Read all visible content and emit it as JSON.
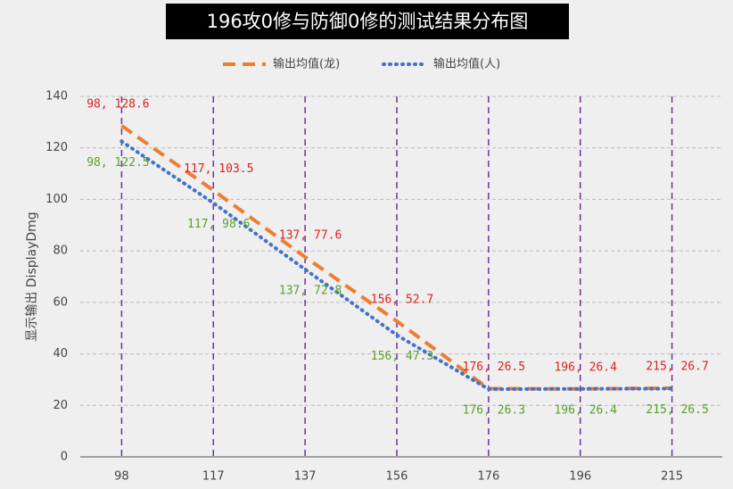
{
  "chart_data": {
    "type": "line",
    "title": "196攻0修与防御0修的测试结果分布图",
    "y_label": "显示输出 DisplayDmg",
    "categories": [
      "98",
      "117",
      "137",
      "156",
      "176",
      "196",
      "215"
    ],
    "series": [
      {
        "name": "输出均值(龙)",
        "color": "#ed7d31",
        "label_color": "#e02020",
        "style": "dashed",
        "values": [
          128.6,
          103.5,
          77.6,
          52.7,
          26.5,
          26.4,
          26.7
        ],
        "value_labels": [
          "98, 128.6",
          "117, 103.5",
          "137, 77.6",
          "156, 52.7",
          "176, 26.5",
          "196, 26.4",
          "215, 26.7"
        ]
      },
      {
        "name": "输出均值(人)",
        "color": "#4472c4",
        "label_color": "#5aa02c",
        "style": "dotted",
        "values": [
          122.5,
          98.6,
          72.8,
          47.3,
          26.3,
          26.4,
          26.5
        ],
        "value_labels": [
          "98, 122.5",
          "117, 98.6",
          "137, 72.8",
          "156, 47.3",
          "176, 26.3",
          "196, 26.4",
          "215, 26.5"
        ]
      }
    ],
    "ylim": [
      0,
      140
    ],
    "yticks": [
      0,
      20,
      40,
      60,
      80,
      100,
      120,
      140
    ],
    "grid": true
  }
}
